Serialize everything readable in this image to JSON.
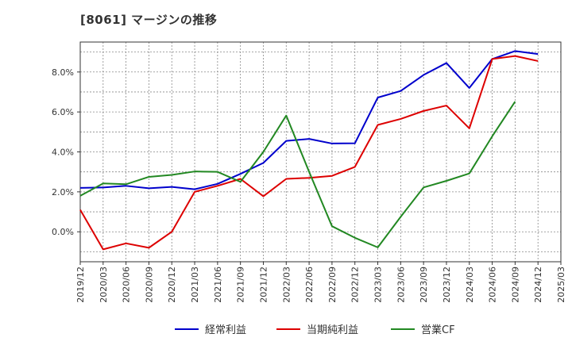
{
  "chart_data": {
    "type": "line",
    "title": "[8061]  マージンの推移",
    "xlabel": "",
    "ylabel": "",
    "x": [
      "2019/12",
      "2020/03",
      "2020/06",
      "2020/09",
      "2020/12",
      "2021/03",
      "2021/06",
      "2021/09",
      "2021/12",
      "2022/03",
      "2022/06",
      "2022/09",
      "2022/12",
      "2023/03",
      "2023/06",
      "2023/09",
      "2023/12",
      "2024/03",
      "2024/06",
      "2024/09",
      "2024/12",
      "2025/03"
    ],
    "y_ticks": [
      0,
      2,
      4,
      6,
      8
    ],
    "y_tick_labels": [
      "0.0%",
      "2.0%",
      "4.0%",
      "6.0%",
      "8.0%"
    ],
    "ylim": [
      -1.5,
      9.5
    ],
    "grid": true,
    "legend_position": "bottom",
    "series": [
      {
        "name": "経常利益",
        "color": "#0000cc",
        "values": [
          2.2,
          2.22,
          2.3,
          2.18,
          2.25,
          2.13,
          2.4,
          2.9,
          3.45,
          4.55,
          4.65,
          4.42,
          4.43,
          6.72,
          7.05,
          7.85,
          8.45,
          7.2,
          8.65,
          9.05,
          8.9,
          null
        ]
      },
      {
        "name": "当期純利益",
        "color": "#dd0000",
        "values": [
          1.1,
          -0.88,
          -0.58,
          -0.8,
          0.0,
          2.0,
          2.3,
          2.65,
          1.78,
          2.65,
          2.7,
          2.8,
          3.25,
          5.35,
          5.65,
          6.05,
          6.32,
          5.18,
          8.65,
          8.8,
          8.55,
          null
        ]
      },
      {
        "name": "営業CF",
        "color": "#228822",
        "values": [
          1.8,
          2.42,
          2.38,
          2.75,
          2.85,
          3.02,
          3.0,
          2.5,
          4.0,
          5.82,
          3.0,
          0.28,
          -0.3,
          -0.78,
          0.75,
          2.22,
          2.55,
          2.92,
          4.78,
          6.52,
          null,
          null
        ]
      }
    ]
  }
}
